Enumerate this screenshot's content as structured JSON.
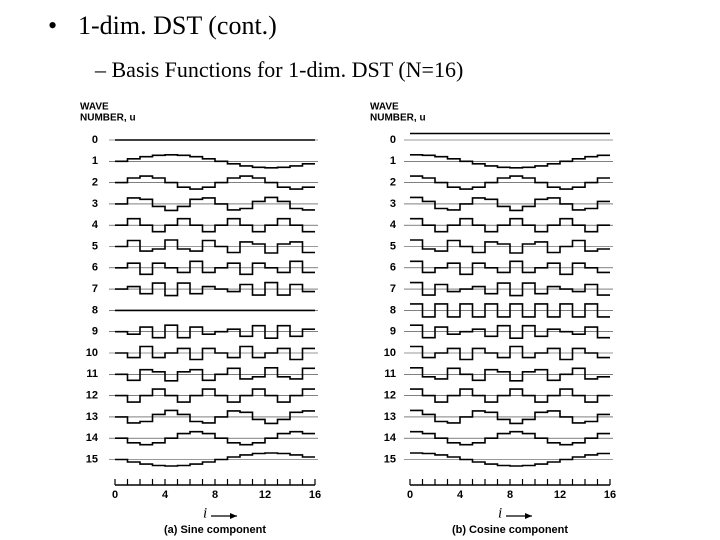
{
  "bullet": "•",
  "title": "1-dim. DST (cont.)",
  "subtitle": "– Basis Functions for 1-dim. DST (N=16)",
  "panels": [
    {
      "axis_title": [
        "WAVE",
        "NUMBER, u"
      ],
      "wave_numbers": [
        "0",
        "1",
        "2",
        "3",
        "4",
        "5",
        "6",
        "7",
        "8",
        "9",
        "10",
        "11",
        "12",
        "13",
        "14",
        "15"
      ],
      "x_ticks": [
        "0",
        "4",
        "8",
        "12",
        "16"
      ],
      "x_label": "i",
      "caption": "(a) Sine component"
    },
    {
      "axis_title": [
        "WAVE",
        "NUMBER, u"
      ],
      "wave_numbers": [
        "0",
        "1",
        "2",
        "3",
        "4",
        "5",
        "6",
        "7",
        "8",
        "9",
        "10",
        "11",
        "12",
        "13",
        "14",
        "15"
      ],
      "x_ticks": [
        "0",
        "4",
        "8",
        "12",
        "16"
      ],
      "x_label": "i",
      "caption": "(b) Cosine component"
    }
  ]
}
